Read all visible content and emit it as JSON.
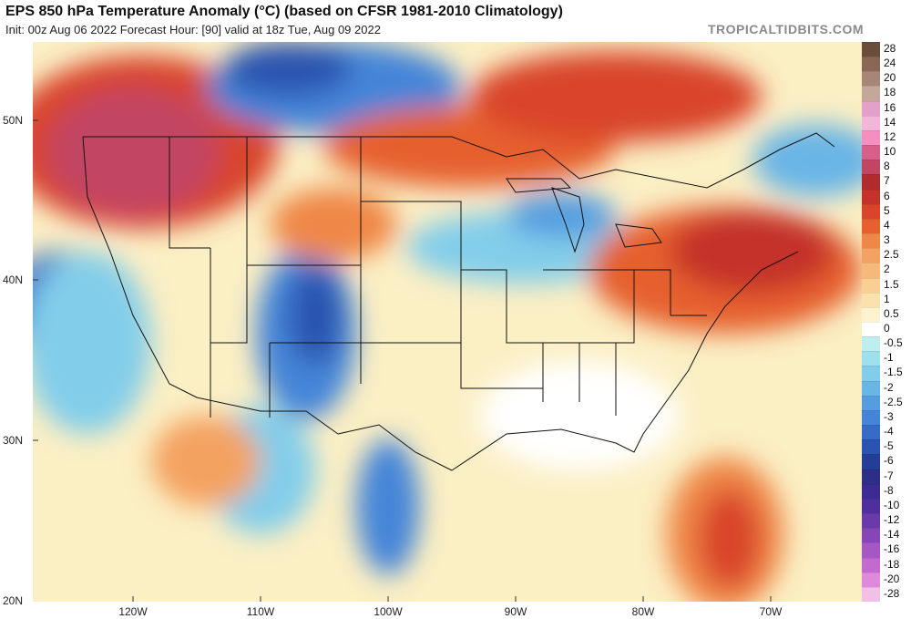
{
  "header": {
    "title": "EPS 850 hPa Temperature Anomaly (°C) (based on CFSR 1981-2010 Climatology)",
    "subtitle": "Init: 00z Aug 06 2022   Forecast Hour: [90]   valid at 18z Tue, Aug 09 2022",
    "brand": "TROPICALTIDBITS.COM"
  },
  "axes": {
    "lat_labels": [
      "50N",
      "40N",
      "30N",
      "20N"
    ],
    "lon_labels": [
      "120W",
      "110W",
      "100W",
      "90W",
      "80W",
      "70W"
    ]
  },
  "colorbar": {
    "labels": [
      "28",
      "24",
      "20",
      "18",
      "16",
      "14",
      "12",
      "10",
      "8",
      "7",
      "6",
      "5",
      "4",
      "3",
      "2.5",
      "2",
      "1.5",
      "1",
      "0.5",
      "0",
      "-0.5",
      "-1",
      "-1.5",
      "-2",
      "-2.5",
      "-3",
      "-4",
      "-5",
      "-6",
      "-7",
      "-8",
      "-10",
      "-12",
      "-14",
      "-16",
      "-18",
      "-20",
      "-28"
    ],
    "colors": [
      "#6b4c3b",
      "#8a6656",
      "#a78677",
      "#c4a79a",
      "#e4a0c8",
      "#f2b6d8",
      "#f58fbf",
      "#d85f8a",
      "#c24563",
      "#b02c2c",
      "#c4322a",
      "#d9442a",
      "#e6612f",
      "#ef8747",
      "#f4a261",
      "#f7b979",
      "#f9cf93",
      "#fbe2ad",
      "#fdf3cf",
      "#ffffff",
      "#bfeeee",
      "#9fe0ee",
      "#82cdea",
      "#69b5e6",
      "#559de0",
      "#4485d8",
      "#366bc8",
      "#2a54b0",
      "#233e96",
      "#2c2f88",
      "#3b2b92",
      "#4e2f9e",
      "#6a3aaa",
      "#8746b8",
      "#a557c4",
      "#c36ad0",
      "#e089dc",
      "#f2c0e6"
    ]
  }
}
